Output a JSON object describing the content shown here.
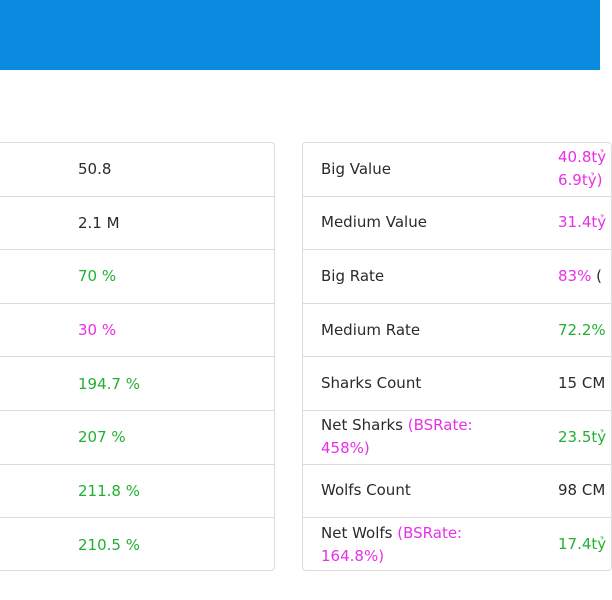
{
  "colors": {
    "header": "#0a8be0",
    "green": "#22b033",
    "magenta": "#e830e8",
    "border": "#dcdcdc"
  },
  "left_rows": [
    {
      "value": "50.8",
      "tone": "dark"
    },
    {
      "value": "2.1 M",
      "tone": "dark"
    },
    {
      "value": "70 %",
      "tone": "green"
    },
    {
      "value": "30 %",
      "tone": "magenta"
    },
    {
      "value": "194.7 %",
      "tone": "green"
    },
    {
      "value": "207 %",
      "tone": "green"
    },
    {
      "value": "211.8 %",
      "tone": "green"
    },
    {
      "value": "210.5 %",
      "tone": "green"
    }
  ],
  "right_rows": [
    {
      "label": "Big Value",
      "label_extra": "",
      "value": "40.8tỷ",
      "value_line2": "6.9tỷ)",
      "tone": "magenta"
    },
    {
      "label": "Medium Value",
      "label_extra": "",
      "value": "31.4tỷ",
      "value_line2": "",
      "tone": "magenta"
    },
    {
      "label": "Big Rate",
      "label_extra": "",
      "value": "83%",
      "value_suffix": " (",
      "value_line2": "",
      "tone": "magenta"
    },
    {
      "label": "Medium Rate",
      "label_extra": "",
      "value": "72.2%",
      "value_line2": "",
      "tone": "green"
    },
    {
      "label": "Sharks Count",
      "label_extra": "",
      "value": "15 CM",
      "value_line2": "",
      "tone": "dark"
    },
    {
      "label": "Net Sharks ",
      "label_extra": "(BSRate:",
      "label_line2": "458%)",
      "value": "23.5tỷ",
      "value_line2": "",
      "tone": "green"
    },
    {
      "label": "Wolfs Count",
      "label_extra": "",
      "value": "98 CM",
      "value_line2": "",
      "tone": "dark"
    },
    {
      "label": "Net Wolfs ",
      "label_extra": "(BSRate:",
      "label_line2": "164.8%)",
      "value": "17.4tỷ",
      "value_line2": "",
      "tone": "green"
    }
  ]
}
